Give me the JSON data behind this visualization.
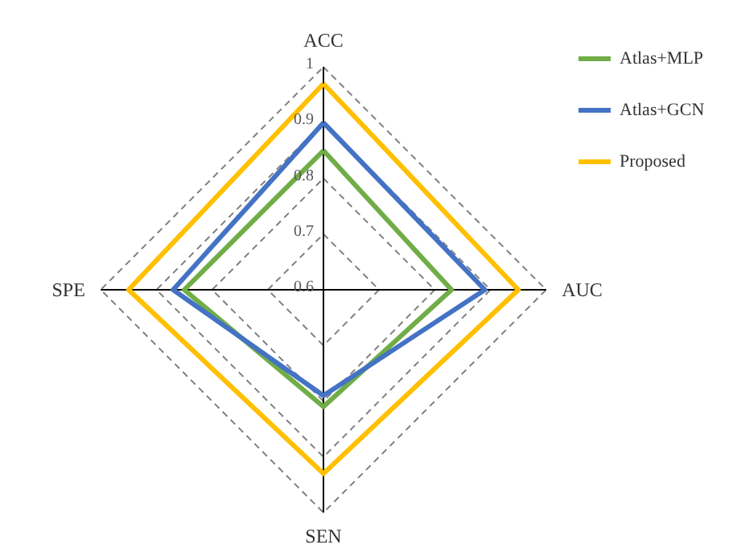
{
  "chart_data": {
    "type": "radar",
    "categories": [
      "ACC",
      "AUC",
      "SEN",
      "SPE"
    ],
    "ylim": [
      0.6,
      1
    ],
    "yticks": [
      0.6,
      0.7,
      0.8,
      0.9,
      1
    ],
    "grid": true,
    "legend": "right",
    "line_style": "solid",
    "marker": "none",
    "series": [
      {
        "name": "Atlas+MLP",
        "color": "#70ad47",
        "values": [
          0.85,
          0.83,
          0.81,
          0.85
        ]
      },
      {
        "name": "Atlas+GCN",
        "color": "#4472c4",
        "values": [
          0.9,
          0.89,
          0.79,
          0.87
        ]
      },
      {
        "name": "Proposed",
        "color": "#ffc000",
        "values": [
          0.97,
          0.95,
          0.93,
          0.95
        ]
      }
    ]
  }
}
